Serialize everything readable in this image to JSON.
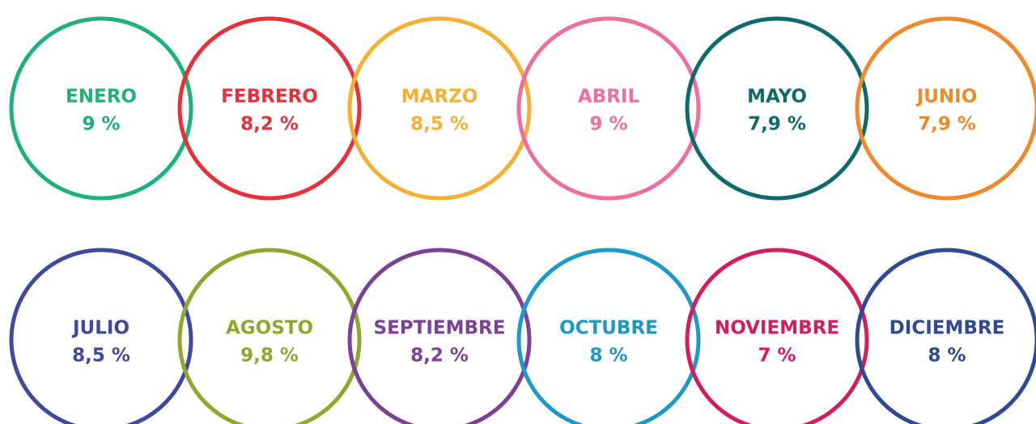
{
  "items": [
    {
      "month": "ENERO",
      "value": "9 %",
      "color": "#1db27a"
    },
    {
      "month": "FEBRERO",
      "value": "8,2 %",
      "color": "#e8303a"
    },
    {
      "month": "MARZO",
      "value": "8,5 %",
      "color": "#f5b031"
    },
    {
      "month": "ABRIL",
      "value": "9 %",
      "color": "#ef6f9c"
    },
    {
      "month": "MAYO",
      "value": "7,9 %",
      "color": "#0f6a6c"
    },
    {
      "month": "JUNIO",
      "value": "7,9 %",
      "color": "#f0892a"
    },
    {
      "month": "JULIO",
      "value": "8,5 %",
      "color": "#3f4a9e"
    },
    {
      "month": "AGOSTO",
      "value": "9,8 %",
      "color": "#8fa82c"
    },
    {
      "month": "SEPTIEMBRE",
      "value": "8,2 %",
      "color": "#7d3f98"
    },
    {
      "month": "OCTUBRE",
      "value": "8 %",
      "color": "#1b99c9"
    },
    {
      "month": "NOVIEMBRE",
      "value": "7 %",
      "color": "#d41d5a"
    },
    {
      "month": "DICIEMBRE",
      "value": "8 %",
      "color": "#2e4a94"
    }
  ]
}
